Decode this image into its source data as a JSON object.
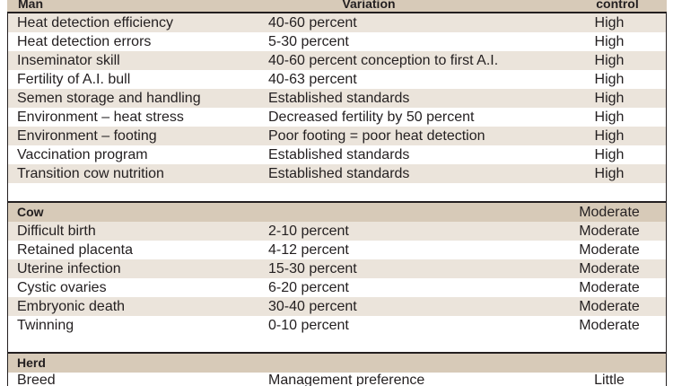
{
  "header": {
    "col1": "Man",
    "col2": "Variation",
    "col3": "control"
  },
  "sections": [
    {
      "rows": [
        {
          "factor": "Heat detection efficiency",
          "variation": "40-60 percent",
          "control": "High"
        },
        {
          "factor": "Heat detection errors",
          "variation": "5-30 percent",
          "control": "High"
        },
        {
          "factor": "Inseminator skill",
          "variation": "40-60 percent conception to first A.I.",
          "control": "High"
        },
        {
          "factor": "Fertility of A.I. bull",
          "variation": "40-63 percent",
          "control": "High"
        },
        {
          "factor": "Semen storage and handling",
          "variation": "Established standards",
          "control": "High"
        },
        {
          "factor": "Environment – heat stress",
          "variation": "Decreased fertility by 50 percent",
          "control": "High"
        },
        {
          "factor": "Environment – footing",
          "variation": "Poor footing = poor heat detection",
          "control": "High"
        },
        {
          "factor": "Vaccination program",
          "variation": "Established standards",
          "control": "High"
        },
        {
          "factor": "Transition cow nutrition",
          "variation": "Established standards",
          "control": "High"
        }
      ]
    },
    {
      "title": "Cow",
      "control": "Moderate",
      "rows": [
        {
          "factor": "Difficult birth",
          "variation": "2-10 percent",
          "control": "Moderate"
        },
        {
          "factor": "Retained placenta",
          "variation": "4-12 percent",
          "control": "Moderate"
        },
        {
          "factor": "Uterine infection",
          "variation": "15-30 percent",
          "control": "Moderate"
        },
        {
          "factor": "Cystic ovaries",
          "variation": "6-20 percent",
          "control": "Moderate"
        },
        {
          "factor": "Embryonic death",
          "variation": "30-40 percent",
          "control": "Moderate"
        },
        {
          "factor": "Twinning",
          "variation": "0-10 percent",
          "control": "Moderate"
        }
      ]
    },
    {
      "title": "Herd",
      "rows": [
        {
          "factor": "Breed",
          "variation": "Management preference",
          "control": "Little"
        }
      ]
    }
  ]
}
